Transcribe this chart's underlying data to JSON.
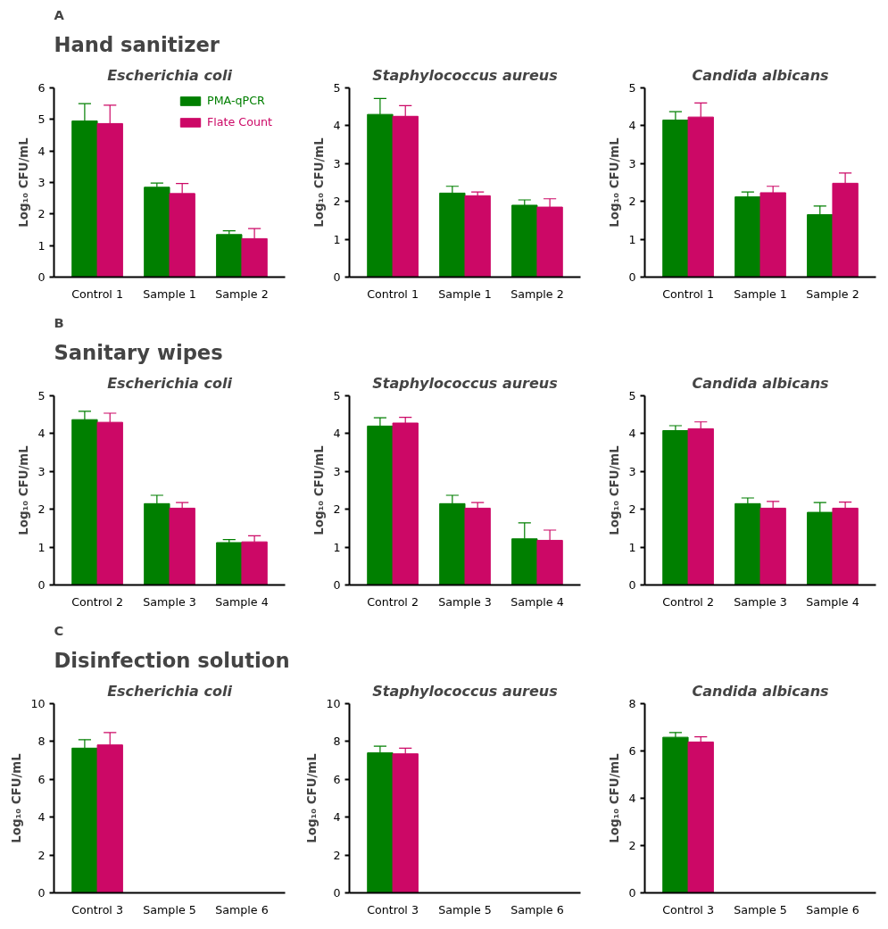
{
  "chart_data": [
    {
      "type": "bar",
      "subtitle": "Hand sanitizer",
      "annotations": [
        "A"
      ],
      "title": "Escherichia coli",
      "ylabel": "Log₁₀ CFU/mL",
      "categories": [
        "Control 1",
        "Sample 1",
        "Sample 2"
      ],
      "ylim": [
        0,
        6
      ],
      "yticks": [
        0,
        1,
        2,
        3,
        4,
        5,
        6
      ],
      "grid": false,
      "legend": "top right",
      "series": [
        {
          "name": "PMA-qPCR",
          "color": "#007f00",
          "values": [
            4.95,
            2.85,
            1.35
          ],
          "errors": [
            [
              4.95,
              5.5
            ],
            [
              2.85,
              2.98
            ],
            [
              1.35,
              1.47
            ]
          ]
        },
        {
          "name": "Flate Count",
          "color": "#cc0866",
          "values": [
            4.87,
            2.65,
            1.22
          ],
          "errors": [
            [
              4.87,
              5.45
            ],
            [
              2.65,
              2.97
            ],
            [
              1.22,
              1.54
            ]
          ]
        }
      ]
    },
    {
      "type": "bar",
      "title": "Staphylococcus aureus",
      "ylabel": "Log₁₀ CFU/mL",
      "categories": [
        "Control 1",
        "Sample 1",
        "Sample 2"
      ],
      "ylim": [
        0,
        5
      ],
      "yticks": [
        0,
        1,
        2,
        3,
        4,
        5
      ],
      "grid": false,
      "series": [
        {
          "color": "#007f00",
          "values": [
            4.3,
            2.22,
            1.9
          ],
          "errors": [
            [
              4.3,
              4.72
            ],
            [
              2.22,
              2.4
            ],
            [
              1.9,
              2.04
            ]
          ]
        },
        {
          "color": "#cc0866",
          "values": [
            4.25,
            2.15,
            1.85
          ],
          "errors": [
            [
              4.25,
              4.53
            ],
            [
              2.15,
              2.25
            ],
            [
              1.85,
              2.07
            ]
          ]
        }
      ]
    },
    {
      "type": "bar",
      "title": "Candida albicans",
      "ylabel": "Log₁₀ CFU/mL",
      "categories": [
        "Control 1",
        "Sample 1",
        "Sample 2"
      ],
      "ylim": [
        0,
        5
      ],
      "yticks": [
        0,
        1,
        2,
        3,
        4,
        5
      ],
      "grid": false,
      "series": [
        {
          "color": "#007f00",
          "values": [
            4.15,
            2.12,
            1.65
          ],
          "errors": [
            [
              4.15,
              4.37
            ],
            [
              2.12,
              2.25
            ],
            [
              1.65,
              1.88
            ]
          ]
        },
        {
          "color": "#cc0866",
          "values": [
            4.23,
            2.23,
            2.48
          ],
          "errors": [
            [
              4.23,
              4.6
            ],
            [
              2.23,
              2.4
            ],
            [
              2.48,
              2.75
            ]
          ]
        }
      ]
    },
    {
      "type": "bar",
      "subtitle": "Sanitary wipes",
      "annotations": [
        "B"
      ],
      "title": "Escherichia coli",
      "ylabel": "Log₁₀ CFU/mL",
      "categories": [
        "Control 2",
        "Sample 3",
        "Sample 4"
      ],
      "ylim": [
        0,
        5
      ],
      "yticks": [
        0,
        1,
        2,
        3,
        4,
        5
      ],
      "grid": false,
      "series": [
        {
          "color": "#007f00",
          "values": [
            4.37,
            2.15,
            1.12
          ],
          "errors": [
            [
              4.37,
              4.59
            ],
            [
              2.15,
              2.37
            ],
            [
              1.12,
              1.2
            ]
          ]
        },
        {
          "color": "#cc0866",
          "values": [
            4.3,
            2.03,
            1.14
          ],
          "errors": [
            [
              4.3,
              4.54
            ],
            [
              2.03,
              2.18
            ],
            [
              1.14,
              1.3
            ]
          ]
        }
      ]
    },
    {
      "type": "bar",
      "title": "Staphylococcus aureus",
      "ylabel": "Log₁₀ CFU/mL",
      "categories": [
        "Control 2",
        "Sample 3",
        "Sample 4"
      ],
      "ylim": [
        0,
        5
      ],
      "yticks": [
        0,
        1,
        2,
        3,
        4,
        5
      ],
      "grid": false,
      "series": [
        {
          "color": "#007f00",
          "values": [
            4.2,
            2.15,
            1.22
          ],
          "errors": [
            [
              4.2,
              4.42
            ],
            [
              2.15,
              2.37
            ],
            [
              1.22,
              1.64
            ]
          ]
        },
        {
          "color": "#cc0866",
          "values": [
            4.28,
            2.03,
            1.18
          ],
          "errors": [
            [
              4.28,
              4.43
            ],
            [
              2.03,
              2.18
            ],
            [
              1.18,
              1.45
            ]
          ]
        }
      ]
    },
    {
      "type": "bar",
      "title": "Candida albicans",
      "ylabel": "Log₁₀ CFU/mL",
      "categories": [
        "Control 2",
        "Sample 3",
        "Sample 4"
      ],
      "ylim": [
        0,
        5
      ],
      "yticks": [
        0,
        1,
        2,
        3,
        4,
        5
      ],
      "grid": false,
      "series": [
        {
          "color": "#007f00",
          "values": [
            4.08,
            2.15,
            1.92
          ],
          "errors": [
            [
              4.08,
              4.21
            ],
            [
              2.15,
              2.3
            ],
            [
              1.92,
              2.18
            ]
          ]
        },
        {
          "color": "#cc0866",
          "values": [
            4.13,
            2.03,
            2.03
          ],
          "errors": [
            [
              4.13,
              4.31
            ],
            [
              2.03,
              2.21
            ],
            [
              2.03,
              2.19
            ]
          ]
        }
      ]
    },
    {
      "type": "bar",
      "subtitle": "Disinfection solution",
      "annotations": [
        "C"
      ],
      "title": "Escherichia coli",
      "ylabel": "Log₁₀ CFU/mL",
      "categories": [
        "Control 3",
        "Sample 5",
        "Sample 6"
      ],
      "ylim": [
        0,
        10
      ],
      "yticks": [
        0,
        2,
        4,
        6,
        8,
        10
      ],
      "grid": false,
      "series": [
        {
          "color": "#007f00",
          "values": [
            7.65,
            0,
            0
          ],
          "errors": [
            [
              7.65,
              8.1
            ],
            null,
            null
          ]
        },
        {
          "color": "#cc0866",
          "values": [
            7.82,
            0,
            0
          ],
          "errors": [
            [
              7.82,
              8.47
            ],
            null,
            null
          ]
        }
      ]
    },
    {
      "type": "bar",
      "title": "Staphylococcus aureus",
      "ylabel": "Log₁₀ CFU/mL",
      "categories": [
        "Control 3",
        "Sample 5",
        "Sample 6"
      ],
      "ylim": [
        0,
        10
      ],
      "yticks": [
        0,
        2,
        4,
        6,
        8,
        10
      ],
      "grid": false,
      "series": [
        {
          "color": "#007f00",
          "values": [
            7.4,
            0,
            0
          ],
          "errors": [
            [
              7.4,
              7.75
            ],
            null,
            null
          ]
        },
        {
          "color": "#cc0866",
          "values": [
            7.35,
            0,
            0
          ],
          "errors": [
            [
              7.35,
              7.65
            ],
            null,
            null
          ]
        }
      ]
    },
    {
      "type": "bar",
      "title": "Candida albicans",
      "ylabel": "Log₁₀ CFU/mL",
      "categories": [
        "Control 3",
        "Sample 5",
        "Sample 6"
      ],
      "ylim": [
        0,
        8
      ],
      "yticks": [
        0,
        2,
        4,
        6,
        8
      ],
      "grid": false,
      "series": [
        {
          "color": "#007f00",
          "values": [
            6.58,
            0,
            0
          ],
          "errors": [
            [
              6.58,
              6.78
            ],
            null,
            null
          ]
        },
        {
          "color": "#cc0866",
          "values": [
            6.38,
            0,
            0
          ],
          "errors": [
            [
              6.38,
              6.6
            ],
            null,
            null
          ]
        }
      ]
    }
  ]
}
